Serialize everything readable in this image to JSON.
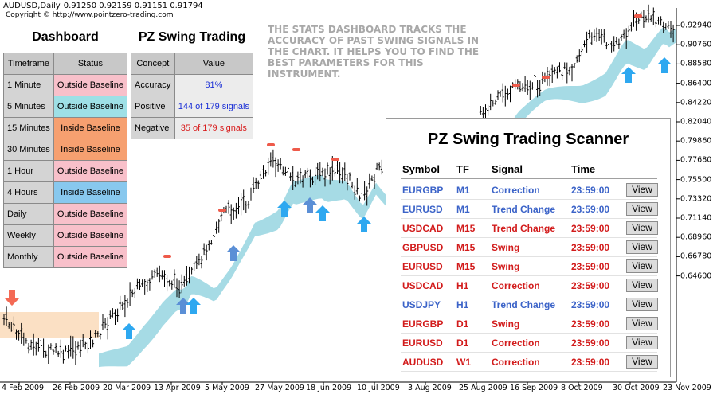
{
  "header": {
    "symbol": "AUDUSD,Daily",
    "ohlc": "0.91250 0.92159 0.91151 0.91794",
    "copyright": "Copyright © http://www.pointzero-trading.com"
  },
  "colors": {
    "band_early": "#fbe0c4",
    "band_main": "#a6dbe5",
    "arrow_up": "#2ea8f0",
    "arrow_alt": "#5b8fd6",
    "arrow_down": "#f46a55",
    "marker_red": "#ee5a4a"
  },
  "y_axis": {
    "labels": [
      "0.92940",
      "0.90760",
      "0.88580",
      "0.86400",
      "0.84220",
      "0.82040",
      "0.79860",
      "0.77680",
      "0.75500",
      "0.73320",
      "0.71140",
      "0.68960",
      "0.66780",
      "0.64600"
    ]
  },
  "x_axis": {
    "labels": [
      "4 Feb 2009",
      "26 Feb 2009",
      "20 Mar 2009",
      "13 Apr 2009",
      "5 May 2009",
      "27 May 2009",
      "18 Jun 2009",
      "10 Jul 2009",
      "3 Aug 2009",
      "25 Aug 2009",
      "16 Sep 2009",
      "8 Oct 2009",
      "30 Oct 2009",
      "23 Nov 2009"
    ]
  },
  "dashboard": {
    "title": "Dashboard",
    "col_timeframe": "Timeframe",
    "col_status": "Status",
    "rows": [
      {
        "timeframe": "1 Minute",
        "status": "Outside Baseline",
        "color": "#f8c0ca"
      },
      {
        "timeframe": "5 Minutes",
        "status": "Outside Baseline",
        "color": "#9ee0e6"
      },
      {
        "timeframe": "15 Minutes",
        "status": "Inside Baseline",
        "color": "#f6a070"
      },
      {
        "timeframe": "30 Minutes",
        "status": "Inside Baseline",
        "color": "#f6a070"
      },
      {
        "timeframe": "1 Hour",
        "status": "Outside Baseline",
        "color": "#f8c0ca"
      },
      {
        "timeframe": "4 Hours",
        "status": "Inside Baseline",
        "color": "#88c8ee"
      },
      {
        "timeframe": "Daily",
        "status": "Outside Baseline",
        "color": "#f8c0ca"
      },
      {
        "timeframe": "Weekly",
        "status": "Outside Baseline",
        "color": "#f8c0ca"
      },
      {
        "timeframe": "Monthly",
        "status": "Outside Baseline",
        "color": "#f8c0ca"
      }
    ]
  },
  "swing": {
    "title": "PZ Swing Trading",
    "col_concept": "Concept",
    "col_value": "Value",
    "rows": [
      {
        "concept": "Accuracy",
        "value": "81%",
        "color": "#1a2fd6"
      },
      {
        "concept": "Positive",
        "value": "144 of 179 signals",
        "color": "#1a2fd6"
      },
      {
        "concept": "Negative",
        "value": "35 of 179 signals",
        "color": "#d81b1b"
      }
    ]
  },
  "note": "THE STATS DASHBOARD TRACKS THE ACCURACY OF PAST SWING SIGNALS IN THE CHART. IT HELPS YOU TO FIND THE BEST PARAMETERS FOR THIS INSTRUMENT.",
  "scanner": {
    "title": "PZ Swing Trading Scanner",
    "col_symbol": "Symbol",
    "col_tf": "TF",
    "col_signal": "Signal",
    "col_time": "Time",
    "view_label": "View",
    "rows": [
      {
        "symbol": "EURGBP",
        "tf": "M1",
        "signal": "Correction",
        "time": "23:59:00",
        "color": "#3b63c8"
      },
      {
        "symbol": "EURUSD",
        "tf": "M1",
        "signal": "Trend Change",
        "time": "23:59:00",
        "color": "#3b63c8"
      },
      {
        "symbol": "USDCAD",
        "tf": "M15",
        "signal": "Trend Change",
        "time": "23:59:00",
        "color": "#d21b1b"
      },
      {
        "symbol": "GBPUSD",
        "tf": "M15",
        "signal": "Swing",
        "time": "23:59:00",
        "color": "#d21b1b"
      },
      {
        "symbol": "EURUSD",
        "tf": "M15",
        "signal": "Swing",
        "time": "23:59:00",
        "color": "#d21b1b"
      },
      {
        "symbol": "USDCAD",
        "tf": "H1",
        "signal": "Correction",
        "time": "23:59:00",
        "color": "#d21b1b"
      },
      {
        "symbol": "USDJPY",
        "tf": "H1",
        "signal": "Trend Change",
        "time": "23:59:00",
        "color": "#3b63c8"
      },
      {
        "symbol": "EURGBP",
        "tf": "D1",
        "signal": "Swing",
        "time": "23:59:00",
        "color": "#d21b1b"
      },
      {
        "symbol": "EURUSD",
        "tf": "D1",
        "signal": "Correction",
        "time": "23:59:00",
        "color": "#d21b1b"
      },
      {
        "symbol": "AUDUSD",
        "tf": "W1",
        "signal": "Correction",
        "time": "23:59:00",
        "color": "#d21b1b"
      }
    ]
  }
}
